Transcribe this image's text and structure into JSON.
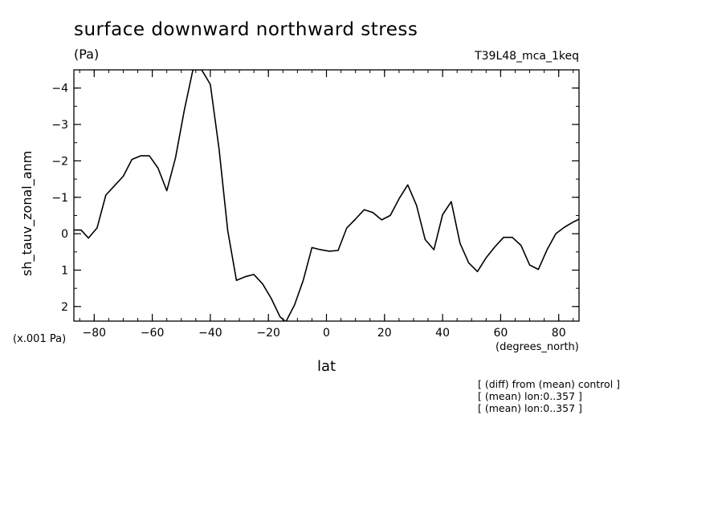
{
  "chart_data": {
    "type": "line",
    "title": "surface downward northward stress",
    "units_label": "(Pa)",
    "run_id": "T39L48_mca_1keq",
    "ylabel": "sh_tauv_zonal_anm",
    "xlabel": "lat",
    "x_units": "(degrees_north)",
    "y_scale_label": "(x.001 Pa)",
    "y_inverted": true,
    "xlim": [
      -87,
      87
    ],
    "ylim": [
      2.4,
      -4.5
    ],
    "x_ticks": [
      -80,
      -60,
      -40,
      -20,
      0,
      20,
      40,
      60,
      80
    ],
    "x_tick_labels": [
      "−80",
      "−60",
      "−40",
      "−20",
      "0",
      "20",
      "40",
      "60",
      "80"
    ],
    "y_ticks": [
      -4,
      -3,
      -2,
      -1,
      0,
      1,
      2
    ],
    "y_tick_labels": [
      "−4",
      "−3",
      "−2",
      "−1",
      "0",
      "1",
      "2"
    ],
    "grid": false,
    "x": [
      -87,
      -84.5,
      -82,
      -79,
      -76,
      -73,
      -70,
      -67,
      -64,
      -61,
      -58,
      -55,
      -52,
      -49,
      -46,
      -43,
      -40,
      -37,
      -34,
      -31,
      -28,
      -25,
      -22,
      -19,
      -16,
      -14,
      -11,
      -8,
      -5,
      -2,
      1,
      4,
      7,
      10,
      13,
      16,
      19,
      22,
      25,
      28,
      31,
      34,
      37,
      40,
      43,
      46,
      49,
      52,
      55,
      58,
      61,
      64,
      67,
      70,
      73,
      76,
      79,
      82,
      85,
      87
    ],
    "series": [
      {
        "values": [
          -0.1,
          -0.1,
          0.12,
          -0.16,
          -1.06,
          -1.32,
          -1.58,
          -2.04,
          -2.14,
          -2.14,
          -1.8,
          -1.18,
          -2.08,
          -3.38,
          -4.5,
          -4.5,
          -4.1,
          -2.34,
          -0.08,
          1.28,
          1.18,
          1.12,
          1.38,
          1.78,
          2.28,
          2.42,
          1.96,
          1.28,
          0.38,
          0.44,
          0.48,
          0.46,
          -0.16,
          -0.4,
          -0.66,
          -0.58,
          -0.38,
          -0.5,
          -0.96,
          -1.34,
          -0.78,
          0.16,
          0.44,
          -0.52,
          -0.88,
          0.26,
          0.8,
          1.04,
          0.66,
          0.36,
          0.1,
          0.1,
          0.32,
          0.86,
          0.98,
          0.44,
          0.0,
          -0.18,
          -0.32,
          -0.4
        ]
      }
    ],
    "notes": [
      "[ (diff) from (mean) control ]",
      "[ (mean) lon:0..357 ]",
      "[ (mean) lon:0..357 ]"
    ]
  }
}
